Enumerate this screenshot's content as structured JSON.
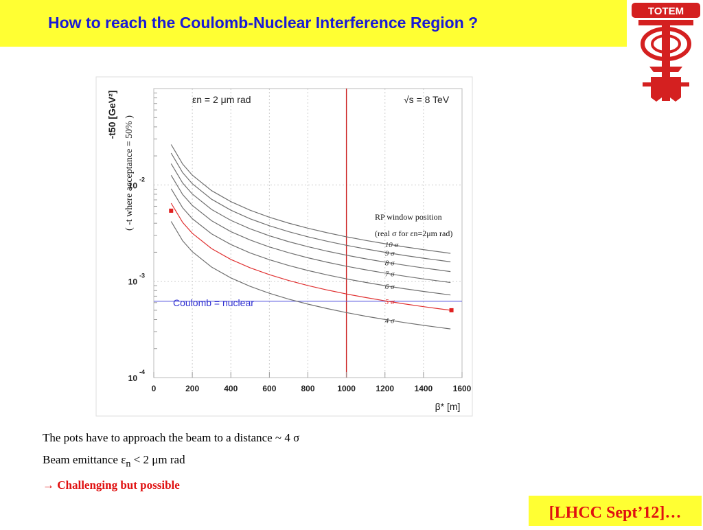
{
  "slide": {
    "title": "How to reach the Coulomb-Nuclear Interference Region ?",
    "logo_text": "TOTEM",
    "bullets": [
      "The pots have to approach the beam to a distance  ~ 4 σ",
      "Beam emittance εn < 2 μm rad",
      "→ Challenging but possible"
    ],
    "bullet2_parts": {
      "pre": "Beam emittance ε",
      "sub": "n",
      "post": " < 2 μm rad"
    },
    "bullet3_parts": {
      "arrow": "→",
      "text": "Challenging but possible"
    },
    "reference": "[LHCC Sept’12]…",
    "colors": {
      "title_bg": "#ffff33",
      "title_text": "#1a1ad6",
      "accent_red": "#e01010"
    }
  },
  "chart_data": {
    "type": "line",
    "x_scale": "linear",
    "y_scale": "log",
    "xlabel": "β* [m]",
    "ylabel": "-t50 [GeV²]",
    "ylabel_note": "( -t where acceptance = 50% )",
    "xlim": [
      0,
      1600
    ],
    "ylim": [
      0.0001,
      0.1
    ],
    "x_ticks": [
      0,
      200,
      400,
      600,
      800,
      1000,
      1200,
      1400,
      1600
    ],
    "y_ticks": [
      {
        "value": 0.01,
        "exp": "-2"
      },
      {
        "value": 0.001,
        "exp": "-3"
      },
      {
        "value": 0.0001,
        "exp": "-4"
      }
    ],
    "y_tick_base": "10",
    "annotations": {
      "emittance": "εn = 2 μm rad",
      "energy": "√s = 8 TeV",
      "rp_window_line1": "RP window position",
      "rp_window_line2": "(real σ for εn=2μm rad)",
      "coulomb": "Coulomb = nuclear"
    },
    "x": [
      90,
      150,
      200,
      300,
      400,
      500,
      600,
      700,
      800,
      900,
      1000,
      1100,
      1200,
      1300,
      1400,
      1540
    ],
    "series": [
      {
        "label": "10 σ",
        "color": "#707070",
        "y0": 0.02625,
        "y1": 0.00195
      },
      {
        "label": "9 σ",
        "color": "#707070",
        "y0": 0.02138,
        "y1": 0.00159
      },
      {
        "label": "8 σ",
        "color": "#707070",
        "y0": 0.0166,
        "y1": 0.00126
      },
      {
        "label": "7 σ",
        "color": "#707070",
        "y0": 0.01259,
        "y1": 0.00097
      },
      {
        "label": "6 σ",
        "color": "#707070",
        "y0": 0.00912,
        "y1": 0.00072
      },
      {
        "label": "5 σ",
        "color": "#e03030",
        "y0": 0.00646,
        "y1": 0.0005
      },
      {
        "label": "4 σ",
        "color": "#707070",
        "y0": 0.00417,
        "y1": 0.00032
      }
    ],
    "series_power": 0.8,
    "end_markers": [
      {
        "x": 90,
        "y": 0.0054
      },
      {
        "x": 1545,
        "y": 0.0005
      }
    ],
    "reference_lines": {
      "vertical_x": 1000,
      "vertical_color": "#cc2020",
      "horizontal_y": 0.00062,
      "horizontal_color": "#6060e0"
    },
    "grid": true
  }
}
